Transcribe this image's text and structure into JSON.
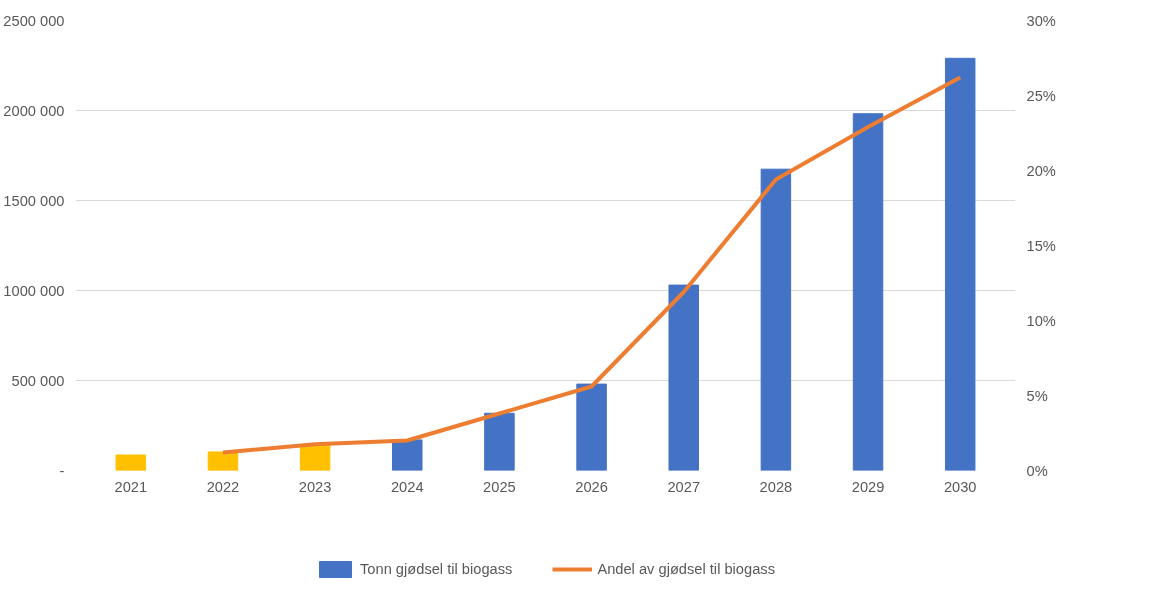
{
  "chart_data": {
    "type": "bar",
    "categories": [
      "2021",
      "2022",
      "2023",
      "2024",
      "2025",
      "2026",
      "2027",
      "2028",
      "2029",
      "2030"
    ],
    "series": [
      {
        "name": "Tonn gjødsel til biogass",
        "type": "bar",
        "color": "#4472c4",
        "colors": [
          "#ffc000",
          "#ffc000",
          "#ffc000",
          "#4472c4",
          "#4472c4",
          "#4472c4",
          "#4472c4",
          "#4472c4",
          "#4472c4",
          "#4472c4"
        ],
        "values": [
          86000,
          103000,
          145000,
          170000,
          318000,
          480000,
          1030000,
          1674000,
          1982000,
          2290000
        ]
      },
      {
        "name": "Andel av gjødsel til biogass",
        "type": "line",
        "axis": "y2",
        "color": "#ed7d31",
        "values": [
          null,
          1.2,
          1.75,
          2.0,
          3.8,
          5.6,
          11.9,
          19.4,
          22.9,
          26.2
        ]
      }
    ],
    "ylim": [
      0,
      2500000
    ],
    "yticks": [
      {
        "value": 0,
        "label": "-"
      },
      {
        "value": 500000,
        "label": "500 000"
      },
      {
        "value": 1000000,
        "label": "1000 000"
      },
      {
        "value": 1500000,
        "label": "1500 000"
      },
      {
        "value": 2000000,
        "label": "2000 000"
      },
      {
        "value": 2500000,
        "label": "2500 000"
      }
    ],
    "y2lim": [
      0,
      30
    ],
    "y2ticks": [
      {
        "value": 0,
        "label": "0%"
      },
      {
        "value": 5,
        "label": "5%"
      },
      {
        "value": 10,
        "label": "10%"
      },
      {
        "value": 15,
        "label": "15%"
      },
      {
        "value": 20,
        "label": "20%"
      },
      {
        "value": 25,
        "label": "25%"
      },
      {
        "value": 30,
        "label": "30%"
      }
    ],
    "grid": "y",
    "legend": "bottom"
  }
}
